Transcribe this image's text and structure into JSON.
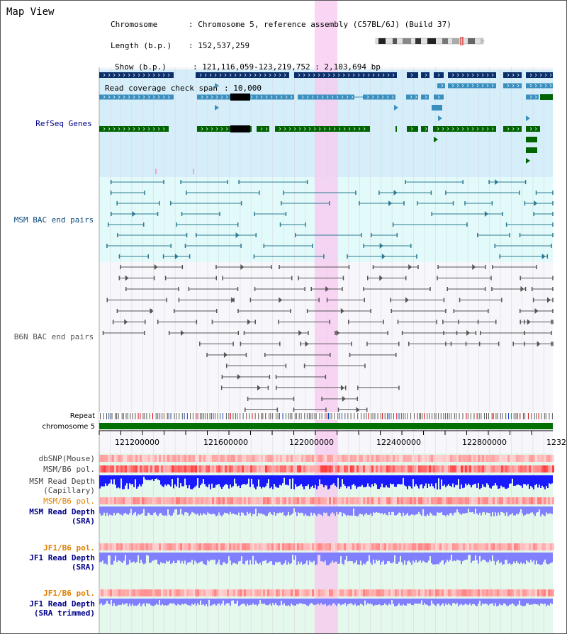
{
  "view_title": "Map View",
  "info": {
    "chromosome_label": "Chromosome",
    "chromosome_value": "Chromosome 5, reference assembly (C57BL/6J) (Build 37)",
    "length_label": "Length (b.p.)",
    "length_value": "152,537,259",
    "show_label": "Show (b.p.)",
    "show_value": "121,116,059-123,219,752 : 2,103,694 bp",
    "coverage_label": "Read coverage check span",
    "coverage_value": "10,000"
  },
  "tracks": {
    "refseq": "RefSeq Genes",
    "msm_bac": "MSM BAC end pairs",
    "b6n_bac": "B6N BAC end pairs",
    "repeat": "Repeat",
    "chromosome": "chromosome 5",
    "dbsnp": "dbSNP(Mouse)",
    "msm_b6_pol": "MSM/B6 pol.",
    "msm_read_depth_cap_1": "MSM Read Depth",
    "msm_read_depth_cap_2": "(Capillary)",
    "msm_b6_pol_2": "MSM/B6 pol.",
    "msm_read_depth_sra_1": "MSM Read Depth",
    "msm_read_depth_sra_2": "(SRA)",
    "jf1_b6_pol_1": "JF1/B6 pol.",
    "jf1_read_depth_sra_1": "JF1 Read Depth",
    "jf1_read_depth_sra_2": "(SRA)",
    "jf1_b6_pol_2": "JF1/B6 pol.",
    "jf1_read_depth_trim_1": "JF1 Read Depth",
    "jf1_read_depth_trim_2": "(SRA trimmed)"
  },
  "axis_ticks": [
    "121200000",
    "121600000",
    "122000000",
    "122400000",
    "122800000",
    "1232"
  ],
  "colors": {
    "refseq_dark": "#0a2f6a",
    "refseq_mid": "#3a8fbf",
    "refseq_green": "#006400",
    "msm_bac": "#2a7a90",
    "b6n_bac": "#555555",
    "highlight": "#f8c8f0",
    "chromosome_bar": "#007000",
    "read_depth_blue": "#1a1aff",
    "read_depth_sra": "#8080ff",
    "pol_red": "#ff3030",
    "label_blue": "#00008b",
    "label_orange": "#e08000"
  }
}
